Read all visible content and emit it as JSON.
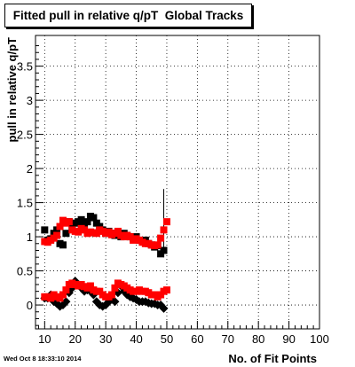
{
  "title": "Fitted pull in relative q/pT  Global Tracks",
  "timestamp": "Wed Oct  8 18:33:10 2014",
  "chart_data": {
    "type": "scatter",
    "title": "Fitted pull in relative q/pT  Global Tracks",
    "xlabel": "No. of Fit Points",
    "ylabel": "pull in relative q/pT",
    "xlim": [
      7,
      100
    ],
    "ylim": [
      -0.35,
      3.95
    ],
    "xticks": [
      10,
      20,
      30,
      40,
      50,
      60,
      70,
      80,
      90,
      100
    ],
    "yticks": [
      0,
      0.5,
      1,
      1.5,
      2,
      2.5,
      3,
      3.5
    ],
    "ytick_labels": [
      "0",
      "0.5",
      "1",
      "1.5",
      "2",
      "2.5",
      "3",
      "3.5"
    ],
    "grid": true,
    "legend": "none",
    "series": [
      {
        "color": "#000000",
        "marker": "square",
        "points": [
          {
            "x": 10,
            "y": 1.1
          },
          {
            "x": 11,
            "y": 0.95
          },
          {
            "x": 12,
            "y": 0.97
          },
          {
            "x": 13,
            "y": 1.05
          },
          {
            "x": 14,
            "y": 1.1
          },
          {
            "x": 15,
            "y": 0.9
          },
          {
            "x": 16,
            "y": 0.88
          },
          {
            "x": 17,
            "y": 1.05
          },
          {
            "x": 18,
            "y": 1.22
          },
          {
            "x": 19,
            "y": 1.15
          },
          {
            "x": 20,
            "y": 1.2
          },
          {
            "x": 21,
            "y": 1.22
          },
          {
            "x": 22,
            "y": 1.25
          },
          {
            "x": 23,
            "y": 1.18
          },
          {
            "x": 24,
            "y": 1.22
          },
          {
            "x": 25,
            "y": 1.3
          },
          {
            "x": 26,
            "y": 1.28
          },
          {
            "x": 27,
            "y": 1.2
          },
          {
            "x": 28,
            "y": 1.15
          },
          {
            "x": 29,
            "y": 1.1
          },
          {
            "x": 30,
            "y": 1.05
          },
          {
            "x": 31,
            "y": 1.08
          },
          {
            "x": 32,
            "y": 1.05
          },
          {
            "x": 33,
            "y": 1.02
          },
          {
            "x": 34,
            "y": 1.05
          },
          {
            "x": 35,
            "y": 1.0
          },
          {
            "x": 36,
            "y": 1.05
          },
          {
            "x": 37,
            "y": 1.02
          },
          {
            "x": 38,
            "y": 1.0
          },
          {
            "x": 39,
            "y": 0.98
          },
          {
            "x": 40,
            "y": 1.0
          },
          {
            "x": 41,
            "y": 0.95
          },
          {
            "x": 42,
            "y": 0.93
          },
          {
            "x": 43,
            "y": 0.95
          },
          {
            "x": 44,
            "y": 0.9
          },
          {
            "x": 45,
            "y": 0.88
          },
          {
            "x": 46,
            "y": 0.85
          },
          {
            "x": 47,
            "y": 0.87
          },
          {
            "x": 48,
            "y": 0.75
          },
          {
            "x": 49,
            "y": 0.8
          }
        ],
        "errorbar": {
          "x": 49,
          "ymin": 0.7,
          "ymax": 1.7
        }
      },
      {
        "color": "#ff0000",
        "marker": "square",
        "points": [
          {
            "x": 10,
            "y": 0.93
          },
          {
            "x": 11,
            "y": 0.92
          },
          {
            "x": 12,
            "y": 0.95
          },
          {
            "x": 13,
            "y": 0.98
          },
          {
            "x": 14,
            "y": 1.02
          },
          {
            "x": 15,
            "y": 1.15
          },
          {
            "x": 16,
            "y": 1.24
          },
          {
            "x": 17,
            "y": 1.2
          },
          {
            "x": 18,
            "y": 1.22
          },
          {
            "x": 19,
            "y": 1.1
          },
          {
            "x": 20,
            "y": 1.08
          },
          {
            "x": 21,
            "y": 1.07
          },
          {
            "x": 22,
            "y": 1.12
          },
          {
            "x": 23,
            "y": 1.1
          },
          {
            "x": 24,
            "y": 1.05
          },
          {
            "x": 25,
            "y": 1.07
          },
          {
            "x": 26,
            "y": 1.06
          },
          {
            "x": 27,
            "y": 1.05
          },
          {
            "x": 28,
            "y": 1.1
          },
          {
            "x": 29,
            "y": 1.08
          },
          {
            "x": 30,
            "y": 1.05
          },
          {
            "x": 31,
            "y": 1.07
          },
          {
            "x": 32,
            "y": 1.03
          },
          {
            "x": 33,
            "y": 1.05
          },
          {
            "x": 34,
            "y": 1.08
          },
          {
            "x": 35,
            "y": 1.02
          },
          {
            "x": 36,
            "y": 1.0
          },
          {
            "x": 37,
            "y": 1.02
          },
          {
            "x": 38,
            "y": 1.0
          },
          {
            "x": 39,
            "y": 0.95
          },
          {
            "x": 40,
            "y": 0.97
          },
          {
            "x": 41,
            "y": 0.95
          },
          {
            "x": 42,
            "y": 0.92
          },
          {
            "x": 43,
            "y": 0.9
          },
          {
            "x": 44,
            "y": 0.9
          },
          {
            "x": 45,
            "y": 0.88
          },
          {
            "x": 46,
            "y": 0.87
          },
          {
            "x": 47,
            "y": 0.88
          },
          {
            "x": 48,
            "y": 0.98
          },
          {
            "x": 49,
            "y": 1.1
          },
          {
            "x": 50,
            "y": 1.22
          }
        ]
      },
      {
        "color": "#000000",
        "marker": "diamond",
        "points": [
          {
            "x": 10,
            "y": 0.1
          },
          {
            "x": 11,
            "y": 0.1
          },
          {
            "x": 12,
            "y": 0.15
          },
          {
            "x": 13,
            "y": 0.05
          },
          {
            "x": 14,
            "y": 0.02
          },
          {
            "x": 15,
            "y": -0.02
          },
          {
            "x": 16,
            "y": 0.0
          },
          {
            "x": 17,
            "y": 0.05
          },
          {
            "x": 18,
            "y": 0.18
          },
          {
            "x": 19,
            "y": 0.25
          },
          {
            "x": 20,
            "y": 0.35
          },
          {
            "x": 21,
            "y": 0.3
          },
          {
            "x": 22,
            "y": 0.25
          },
          {
            "x": 23,
            "y": 0.2
          },
          {
            "x": 24,
            "y": 0.22
          },
          {
            "x": 25,
            "y": 0.2
          },
          {
            "x": 26,
            "y": 0.15
          },
          {
            "x": 27,
            "y": 0.05
          },
          {
            "x": 28,
            "y": 0.0
          },
          {
            "x": 29,
            "y": -0.02
          },
          {
            "x": 30,
            "y": 0.0
          },
          {
            "x": 31,
            "y": 0.05
          },
          {
            "x": 32,
            "y": 0.08
          },
          {
            "x": 33,
            "y": 0.05
          },
          {
            "x": 34,
            "y": 0.18
          },
          {
            "x": 35,
            "y": 0.28
          },
          {
            "x": 36,
            "y": 0.2
          },
          {
            "x": 37,
            "y": 0.15
          },
          {
            "x": 38,
            "y": 0.12
          },
          {
            "x": 39,
            "y": 0.1
          },
          {
            "x": 40,
            "y": 0.08
          },
          {
            "x": 41,
            "y": 0.05
          },
          {
            "x": 42,
            "y": 0.05
          },
          {
            "x": 43,
            "y": 0.05
          },
          {
            "x": 44,
            "y": 0.03
          },
          {
            "x": 45,
            "y": 0.02
          },
          {
            "x": 46,
            "y": 0.02
          },
          {
            "x": 47,
            "y": 0.0
          },
          {
            "x": 48,
            "y": 0.0
          },
          {
            "x": 49,
            "y": -0.05
          }
        ]
      },
      {
        "color": "#ff0000",
        "marker": "square",
        "points": [
          {
            "x": 10,
            "y": 0.12
          },
          {
            "x": 11,
            "y": 0.12
          },
          {
            "x": 12,
            "y": 0.1
          },
          {
            "x": 13,
            "y": 0.15
          },
          {
            "x": 14,
            "y": 0.12
          },
          {
            "x": 15,
            "y": 0.1
          },
          {
            "x": 16,
            "y": 0.15
          },
          {
            "x": 17,
            "y": 0.22
          },
          {
            "x": 18,
            "y": 0.3
          },
          {
            "x": 19,
            "y": 0.32
          },
          {
            "x": 20,
            "y": 0.3
          },
          {
            "x": 21,
            "y": 0.28
          },
          {
            "x": 22,
            "y": 0.3
          },
          {
            "x": 23,
            "y": 0.27
          },
          {
            "x": 24,
            "y": 0.25
          },
          {
            "x": 25,
            "y": 0.28
          },
          {
            "x": 26,
            "y": 0.22
          },
          {
            "x": 27,
            "y": 0.2
          },
          {
            "x": 28,
            "y": 0.2
          },
          {
            "x": 29,
            "y": 0.15
          },
          {
            "x": 30,
            "y": 0.12
          },
          {
            "x": 31,
            "y": 0.12
          },
          {
            "x": 32,
            "y": 0.15
          },
          {
            "x": 33,
            "y": 0.25
          },
          {
            "x": 34,
            "y": 0.32
          },
          {
            "x": 35,
            "y": 0.3
          },
          {
            "x": 36,
            "y": 0.28
          },
          {
            "x": 37,
            "y": 0.25
          },
          {
            "x": 38,
            "y": 0.22
          },
          {
            "x": 39,
            "y": 0.2
          },
          {
            "x": 40,
            "y": 0.2
          },
          {
            "x": 41,
            "y": 0.22
          },
          {
            "x": 42,
            "y": 0.2
          },
          {
            "x": 43,
            "y": 0.2
          },
          {
            "x": 44,
            "y": 0.18
          },
          {
            "x": 45,
            "y": 0.15
          },
          {
            "x": 46,
            "y": 0.15
          },
          {
            "x": 47,
            "y": 0.12
          },
          {
            "x": 48,
            "y": 0.15
          },
          {
            "x": 49,
            "y": 0.2
          },
          {
            "x": 50,
            "y": 0.22
          }
        ]
      }
    ]
  }
}
